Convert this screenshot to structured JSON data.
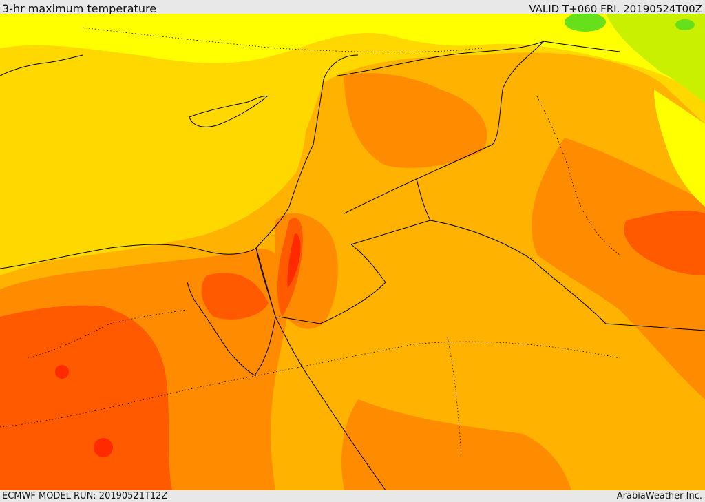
{
  "header": {
    "title": "3-hr maximum temperature",
    "valid": "VALID T+060 FRI. 20190524T00Z"
  },
  "footer": {
    "model_run": "ECMWF MODEL RUN: 20190521T12Z",
    "credit": "ArabiaWeather Inc."
  },
  "map": {
    "field": "temperature-color-fill",
    "colors": {
      "green": "#66e01a",
      "yellow_green": "#c8f000",
      "bright_yellow": "#ffff00",
      "yellow": "#ffd800",
      "light_orange": "#ffb200",
      "orange": "#ff8c00",
      "red_orange": "#ff5a00",
      "red": "#ff2a00",
      "border": "#000000"
    }
  }
}
